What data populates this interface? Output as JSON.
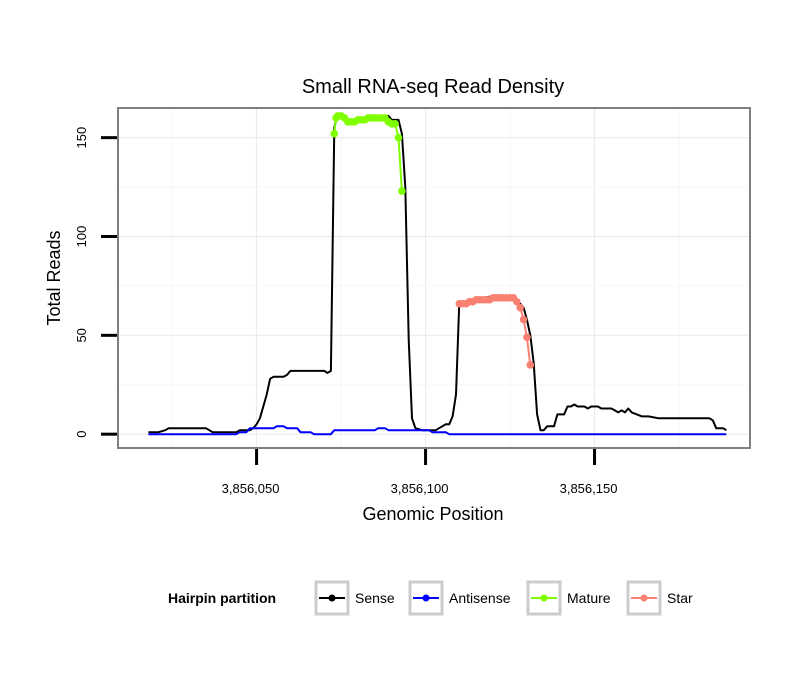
{
  "chart_data": {
    "type": "line",
    "title": "Small RNA-seq Read Density",
    "xlabel": "Genomic Position",
    "ylabel": "Total Reads",
    "xlim": [
      3856009,
      3856196
    ],
    "ylim": [
      -7,
      165
    ],
    "x_ticks": [
      3856050,
      3856100,
      3856150
    ],
    "x_tick_labels": [
      "3,856,050",
      "3,856,100",
      "3,856,150"
    ],
    "y_ticks": [
      0,
      50,
      100,
      150
    ],
    "y_tick_labels": [
      "0",
      "50",
      "100",
      "150"
    ],
    "grid": true,
    "legend": {
      "title": "Hairpin partition",
      "position": "bottom",
      "entries": [
        {
          "name": "Sense",
          "color": "#000000"
        },
        {
          "name": "Antisense",
          "color": "#0000ff"
        },
        {
          "name": "Mature",
          "color": "#7fff00"
        },
        {
          "name": "Star",
          "color": "#fa8072"
        }
      ]
    },
    "series": [
      {
        "name": "Sense",
        "color": "#000000",
        "points": [
          [
            3856018,
            1
          ],
          [
            3856021,
            1
          ],
          [
            3856023,
            2
          ],
          [
            3856024,
            3
          ],
          [
            3856030,
            3
          ],
          [
            3856035,
            3
          ],
          [
            3856036,
            2
          ],
          [
            3856037,
            1
          ],
          [
            3856040,
            1
          ],
          [
            3856044,
            1
          ],
          [
            3856045,
            2
          ],
          [
            3856048,
            2
          ],
          [
            3856049,
            3
          ],
          [
            3856050,
            5
          ],
          [
            3856051,
            8
          ],
          [
            3856052,
            14
          ],
          [
            3856053,
            20
          ],
          [
            3856054,
            28
          ],
          [
            3856055,
            29
          ],
          [
            3856058,
            29
          ],
          [
            3856059,
            30
          ],
          [
            3856060,
            32
          ],
          [
            3856070,
            32
          ],
          [
            3856071,
            31
          ],
          [
            3856072,
            32
          ],
          [
            3856073,
            155
          ],
          [
            3856074,
            162
          ],
          [
            3856076,
            161
          ],
          [
            3856077,
            159
          ],
          [
            3856080,
            159
          ],
          [
            3856081,
            160
          ],
          [
            3856083,
            160
          ],
          [
            3856084,
            161
          ],
          [
            3856089,
            161
          ],
          [
            3856090,
            159
          ],
          [
            3856092,
            159
          ],
          [
            3856093,
            152
          ],
          [
            3856094,
            125
          ],
          [
            3856095,
            48
          ],
          [
            3856096,
            8
          ],
          [
            3856097,
            3
          ],
          [
            3856099,
            2
          ],
          [
            3856100,
            2
          ],
          [
            3856103,
            2
          ],
          [
            3856104,
            3
          ],
          [
            3856106,
            5
          ],
          [
            3856107,
            5
          ],
          [
            3856108,
            9
          ],
          [
            3856109,
            20
          ],
          [
            3856110,
            67
          ],
          [
            3856113,
            67
          ],
          [
            3856114,
            68
          ],
          [
            3856116,
            69
          ],
          [
            3856117,
            69
          ],
          [
            3856121,
            70
          ],
          [
            3856126,
            70
          ],
          [
            3856127,
            68
          ],
          [
            3856128,
            66
          ],
          [
            3856129,
            64
          ],
          [
            3856130,
            58
          ],
          [
            3856131,
            50
          ],
          [
            3856132,
            36
          ],
          [
            3856133,
            10
          ],
          [
            3856134,
            2
          ],
          [
            3856135,
            2
          ],
          [
            3856136,
            4
          ],
          [
            3856138,
            4
          ],
          [
            3856139,
            10
          ],
          [
            3856141,
            10
          ],
          [
            3856142,
            14
          ],
          [
            3856143,
            14
          ],
          [
            3856144,
            15
          ],
          [
            3856145,
            14
          ],
          [
            3856147,
            14
          ],
          [
            3856148,
            13
          ],
          [
            3856149,
            14
          ],
          [
            3856151,
            14
          ],
          [
            3856152,
            13
          ],
          [
            3856155,
            13
          ],
          [
            3856156,
            12
          ],
          [
            3856157,
            11
          ],
          [
            3856158,
            12
          ],
          [
            3856159,
            11
          ],
          [
            3856160,
            13
          ],
          [
            3856161,
            11
          ],
          [
            3856164,
            9
          ],
          [
            3856166,
            9
          ],
          [
            3856169,
            8
          ],
          [
            3856175,
            8
          ],
          [
            3856176,
            8
          ],
          [
            3856184,
            8
          ],
          [
            3856185,
            7
          ],
          [
            3856186,
            3
          ],
          [
            3856188,
            3
          ],
          [
            3856189,
            2
          ]
        ]
      },
      {
        "name": "Antisense",
        "color": "#0000ff",
        "points": [
          [
            3856018,
            0
          ],
          [
            3856021,
            0
          ],
          [
            3856022,
            0
          ],
          [
            3856044,
            0
          ],
          [
            3856045,
            1
          ],
          [
            3856047,
            1
          ],
          [
            3856048,
            3
          ],
          [
            3856055,
            3
          ],
          [
            3856056,
            4
          ],
          [
            3856058,
            4
          ],
          [
            3856059,
            3
          ],
          [
            3856062,
            3
          ],
          [
            3856063,
            1
          ],
          [
            3856066,
            1
          ],
          [
            3856067,
            0
          ],
          [
            3856072,
            0
          ],
          [
            3856073,
            2
          ],
          [
            3856085,
            2
          ],
          [
            3856086,
            3
          ],
          [
            3856088,
            3
          ],
          [
            3856089,
            2
          ],
          [
            3856101,
            2
          ],
          [
            3856102,
            1
          ],
          [
            3856106,
            1
          ],
          [
            3856107,
            0
          ],
          [
            3856189,
            0
          ]
        ]
      },
      {
        "name": "Mature",
        "color": "#7fff00",
        "points": [
          [
            3856073,
            152
          ],
          [
            3856073.5,
            160
          ],
          [
            3856074,
            161
          ],
          [
            3856075,
            161
          ],
          [
            3856076,
            160
          ],
          [
            3856077,
            158
          ],
          [
            3856078,
            158
          ],
          [
            3856079,
            158
          ],
          [
            3856080,
            159
          ],
          [
            3856081,
            159
          ],
          [
            3856082,
            159
          ],
          [
            3856083,
            160
          ],
          [
            3856084,
            160
          ],
          [
            3856085,
            160
          ],
          [
            3856086,
            160
          ],
          [
            3856087,
            160
          ],
          [
            3856088,
            160
          ],
          [
            3856089,
            158
          ],
          [
            3856090,
            157
          ],
          [
            3856091,
            157
          ],
          [
            3856092,
            150
          ],
          [
            3856093,
            123
          ]
        ]
      },
      {
        "name": "Star",
        "color": "#fa8072",
        "points": [
          [
            3856110,
            66
          ],
          [
            3856111,
            66
          ],
          [
            3856112,
            66
          ],
          [
            3856113,
            67
          ],
          [
            3856114,
            67
          ],
          [
            3856115,
            68
          ],
          [
            3856116,
            68
          ],
          [
            3856117,
            68
          ],
          [
            3856118,
            68
          ],
          [
            3856119,
            68
          ],
          [
            3856120,
            69
          ],
          [
            3856121,
            69
          ],
          [
            3856122,
            69
          ],
          [
            3856123,
            69
          ],
          [
            3856124,
            69
          ],
          [
            3856125,
            69
          ],
          [
            3856126,
            69
          ],
          [
            3856127,
            67
          ],
          [
            3856128,
            64
          ],
          [
            3856129,
            58
          ],
          [
            3856130,
            49
          ],
          [
            3856131,
            35
          ]
        ]
      }
    ]
  }
}
